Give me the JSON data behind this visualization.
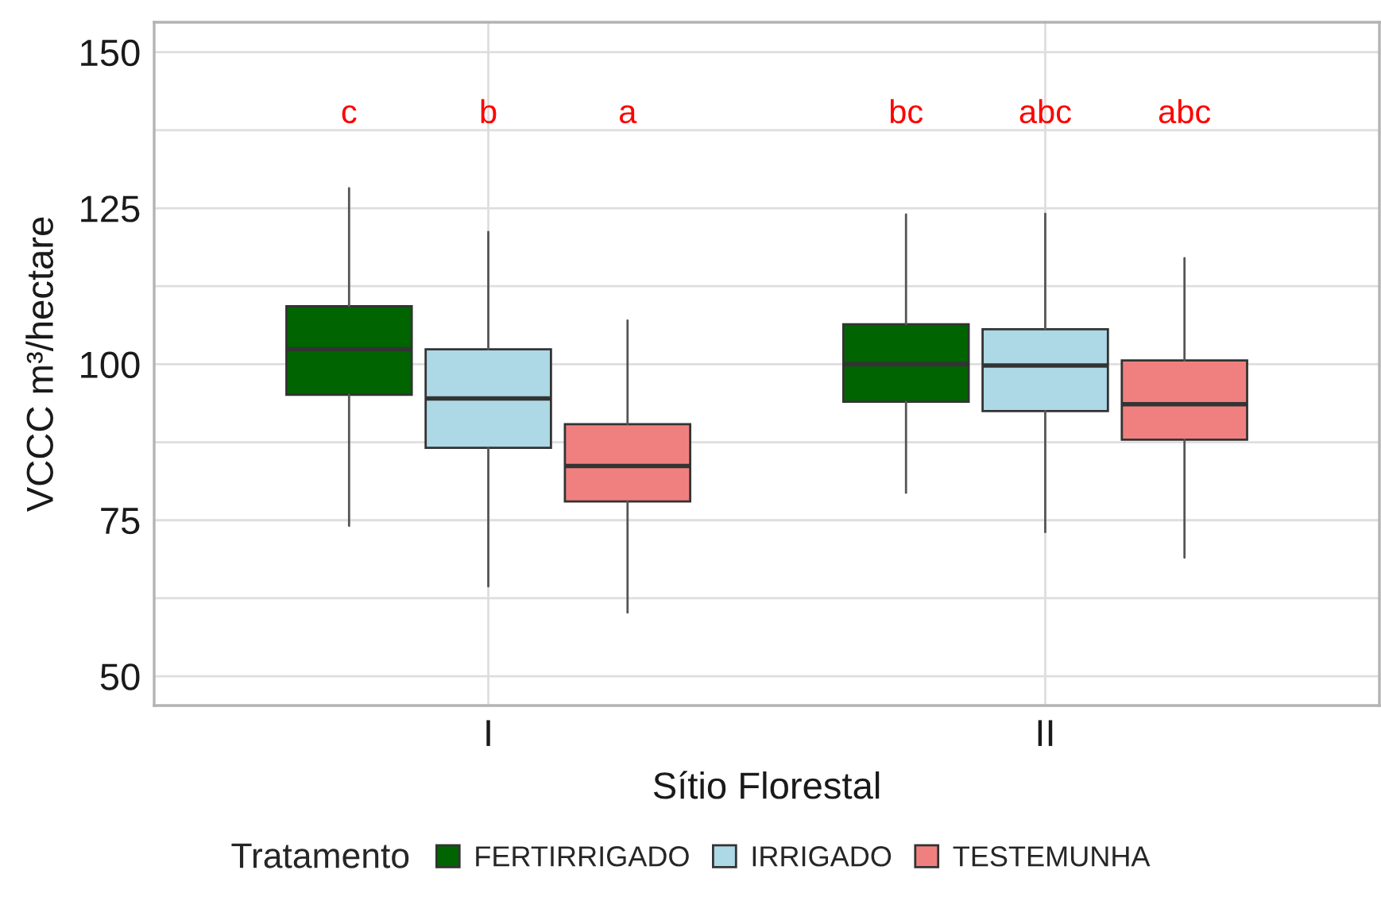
{
  "chart_data": {
    "type": "box",
    "xlabel": "Sítio Florestal",
    "ylabel": "VCCC m³/hectare",
    "legend_title": "Tratamento",
    "categories": [
      "I",
      "II"
    ],
    "series": [
      {
        "name": "FERTIRRIGADO",
        "color": "#006400",
        "boxes": [
          {
            "low": 74.1,
            "q1": 95.1,
            "median": 102.4,
            "q3": 109.3,
            "high": 128.2
          },
          {
            "low": 79.4,
            "q1": 94,
            "median": 100,
            "q3": 106.4,
            "high": 124
          }
        ]
      },
      {
        "name": "IRRIGADO",
        "color": "#add8e6",
        "boxes": [
          {
            "low": 64.4,
            "q1": 86.6,
            "median": 94.5,
            "q3": 102.4,
            "high": 121.2
          },
          {
            "low": 73.1,
            "q1": 92.5,
            "median": 99.8,
            "q3": 105.6,
            "high": 124.1
          }
        ]
      },
      {
        "name": "TESTEMUNHA",
        "color": "#f08080",
        "boxes": [
          {
            "low": 60.2,
            "q1": 78,
            "median": 83.7,
            "q3": 90.4,
            "high": 107
          },
          {
            "low": 69,
            "q1": 87.9,
            "median": 93.6,
            "q3": 100.6,
            "high": 117
          }
        ]
      }
    ],
    "annotations": [
      "c",
      "b",
      "a",
      "bc",
      "abc",
      "abc"
    ],
    "ylim": [
      45.3,
      154.8
    ],
    "yticks": [
      50,
      {
        "value": 62.5,
        "label": null
      },
      75,
      {
        "value": 87.5,
        "label": null
      },
      100,
      {
        "value": 112.5,
        "label": null
      },
      125,
      {
        "value": 137.5,
        "label": null
      },
      150
    ],
    "grid": true,
    "legend": "bottom"
  }
}
